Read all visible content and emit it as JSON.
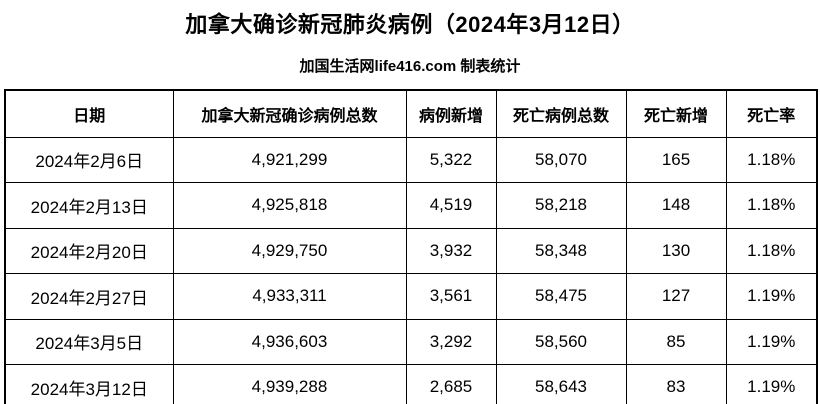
{
  "header": {
    "title": "加拿大确诊新冠肺炎病例（2024年3月12日）",
    "subtitle": "加国生活网life416.com 制表统计"
  },
  "table": {
    "headers": [
      "日期",
      "加拿大新冠确诊病例总数",
      "病例新增",
      "死亡病例总数",
      "死亡新增",
      "死亡率"
    ],
    "rows": [
      [
        "2024年2月6日",
        "4,921,299",
        "5,322",
        "58,070",
        "165",
        "1.18%"
      ],
      [
        "2024年2月13日",
        "4,925,818",
        "4,519",
        "58,218",
        "148",
        "1.18%"
      ],
      [
        "2024年2月20日",
        "4,929,750",
        "3,932",
        "58,348",
        "130",
        "1.18%"
      ],
      [
        "2024年2月27日",
        "4,933,311",
        "3,561",
        "58,475",
        "127",
        "1.19%"
      ],
      [
        "2024年3月5日",
        "4,936,603",
        "3,292",
        "58,560",
        "85",
        "1.19%"
      ],
      [
        "2024年3月12日",
        "4,939,288",
        "2,685",
        "58,643",
        "83",
        "1.19%"
      ]
    ]
  },
  "chart_data": {
    "type": "table",
    "title": "加拿大确诊新冠肺炎病例（2024年3月12日）",
    "columns": [
      "日期",
      "加拿大新冠确诊病例总数",
      "病例新增",
      "死亡病例总数",
      "死亡新增",
      "死亡率"
    ],
    "dates": [
      "2024年2月6日",
      "2024年2月13日",
      "2024年2月20日",
      "2024年2月27日",
      "2024年3月5日",
      "2024年3月12日"
    ],
    "total_cases": [
      4921299,
      4925818,
      4929750,
      4933311,
      4936603,
      4939288
    ],
    "new_cases": [
      5322,
      4519,
      3932,
      3561,
      3292,
      2685
    ],
    "total_deaths": [
      58070,
      58218,
      58348,
      58475,
      58560,
      58643
    ],
    "new_deaths": [
      165,
      148,
      130,
      127,
      85,
      83
    ],
    "death_rate_pct": [
      1.18,
      1.18,
      1.18,
      1.19,
      1.19,
      1.19
    ]
  }
}
